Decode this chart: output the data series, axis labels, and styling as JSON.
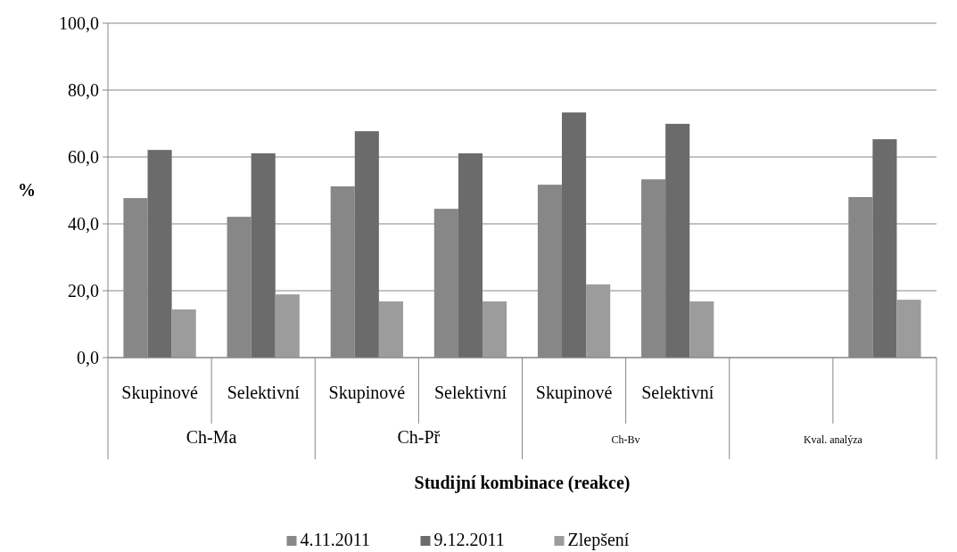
{
  "chart_data": {
    "type": "bar",
    "xlabel": "Studijní kombinace (reakce)",
    "ylabel": "%",
    "categories": [
      "Skupinové",
      "Selektivní",
      "Skupinové",
      "Selektivní",
      "Skupinové",
      "Selektivní",
      null,
      null
    ],
    "series": [
      {
        "name": "4.11.2011",
        "color": "#878787",
        "values": [
          47.7,
          42.1,
          51.2,
          44.5,
          51.7,
          53.3,
          null,
          48.0
        ]
      },
      {
        "name": "9.12.2011",
        "color": "#6b6b6b",
        "values": [
          62.1,
          61.1,
          67.7,
          61.1,
          73.3,
          69.9,
          null,
          65.3
        ]
      },
      {
        "name": "Zlepšení",
        "color": "#9c9c9c",
        "values": [
          14.4,
          18.9,
          16.8,
          16.8,
          21.9,
          16.8,
          null,
          17.3
        ]
      }
    ],
    "annotations": [
      "Ch-Ma",
      "Ch-Př",
      "Ch-Bv",
      "Kval. analýza"
    ],
    "ylim": [
      0,
      100
    ],
    "yticks": [
      {
        "value": 0,
        "label": "0,0"
      },
      {
        "value": 20,
        "label": "20,0"
      },
      {
        "value": 40,
        "label": "40,0"
      },
      {
        "value": 60,
        "label": "60,0"
      },
      {
        "value": 80,
        "label": "80,0"
      },
      {
        "value": 100,
        "label": "100,0"
      }
    ],
    "grid": "y",
    "legend": "bottom"
  }
}
